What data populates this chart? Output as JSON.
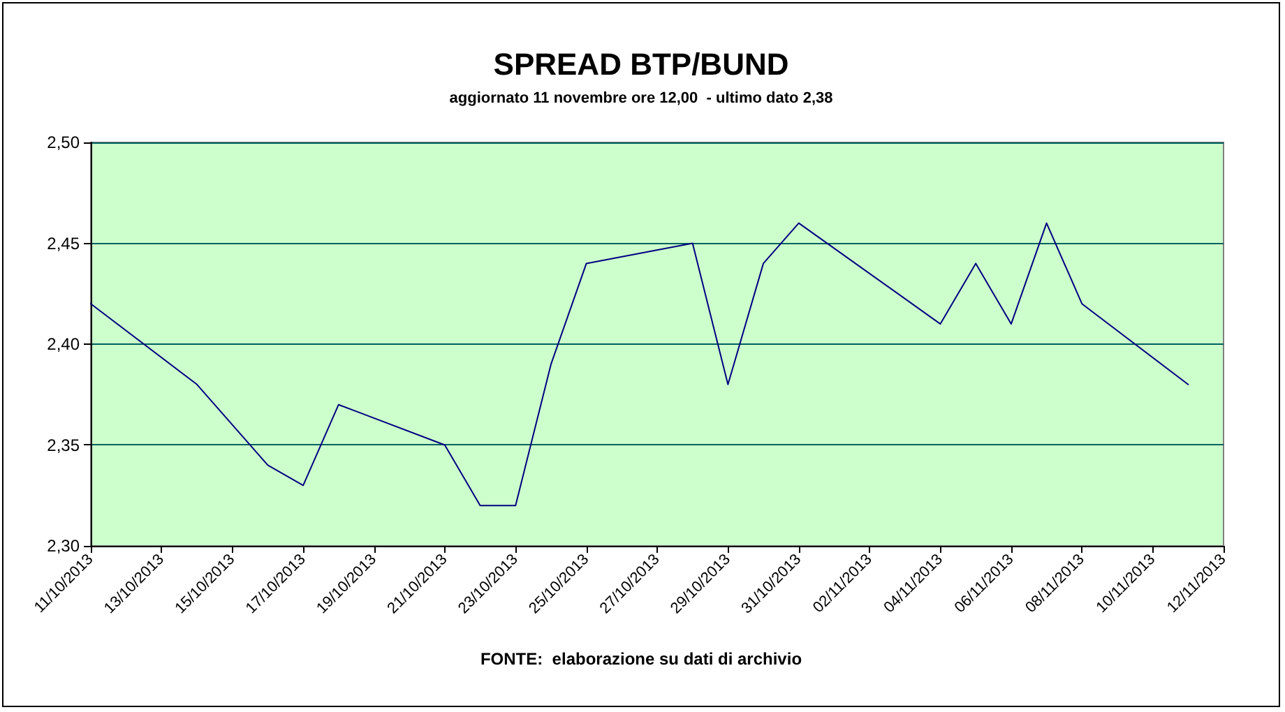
{
  "chart_data": {
    "type": "line",
    "title": "SPREAD BTP/BUND",
    "subtitle": "aggiornato 11 novembre ore 12,00  - ultimo dato 2,38",
    "x": [
      "2013-10-11",
      "2013-10-14",
      "2013-10-15",
      "2013-10-16",
      "2013-10-17",
      "2013-10-18",
      "2013-10-21",
      "2013-10-22",
      "2013-10-23",
      "2013-10-24",
      "2013-10-25",
      "2013-10-28",
      "2013-10-29",
      "2013-10-30",
      "2013-10-31",
      "2013-11-04",
      "2013-11-05",
      "2013-11-06",
      "2013-11-07",
      "2013-11-08",
      "2013-11-11"
    ],
    "series": [
      {
        "color": "#000080",
        "values": [
          2.42,
          2.38,
          2.36,
          2.34,
          2.33,
          2.37,
          2.35,
          2.32,
          2.32,
          2.39,
          2.44,
          2.45,
          2.38,
          2.44,
          2.46,
          2.41,
          2.44,
          2.41,
          2.46,
          2.42,
          2.38
        ]
      }
    ],
    "xlim": [
      "2013-10-11",
      "2013-11-12"
    ],
    "xticks": [
      {
        "value": "2013-10-11",
        "label": "11/10/2013"
      },
      {
        "value": "2013-10-13",
        "label": "13/10/2013"
      },
      {
        "value": "2013-10-15",
        "label": "15/10/2013"
      },
      {
        "value": "2013-10-17",
        "label": "17/10/2013"
      },
      {
        "value": "2013-10-19",
        "label": "19/10/2013"
      },
      {
        "value": "2013-10-21",
        "label": "21/10/2013"
      },
      {
        "value": "2013-10-23",
        "label": "23/10/2013"
      },
      {
        "value": "2013-10-25",
        "label": "25/10/2013"
      },
      {
        "value": "2013-10-27",
        "label": "27/10/2013"
      },
      {
        "value": "2013-10-29",
        "label": "29/10/2013"
      },
      {
        "value": "2013-10-31",
        "label": "31/10/2013"
      },
      {
        "value": "2013-11-02",
        "label": "02/11/2013"
      },
      {
        "value": "2013-11-04",
        "label": "04/11/2013"
      },
      {
        "value": "2013-11-06",
        "label": "06/11/2013"
      },
      {
        "value": "2013-11-08",
        "label": "08/11/2013"
      },
      {
        "value": "2013-11-10",
        "label": "10/11/2013"
      },
      {
        "value": "2013-11-12",
        "label": "12/11/2013"
      }
    ],
    "ylim": [
      2.3,
      2.5
    ],
    "yticks": [
      {
        "value": 2.3,
        "label": "2,30"
      },
      {
        "value": 2.35,
        "label": "2,35"
      },
      {
        "value": 2.4,
        "label": "2,40"
      },
      {
        "value": 2.45,
        "label": "2,45"
      },
      {
        "value": 2.5,
        "label": "2,50"
      }
    ],
    "grid": "y",
    "marker": "none",
    "line_style": "solid",
    "annotations": [
      "FONTE:  elaborazione su dati di archivio"
    ]
  }
}
